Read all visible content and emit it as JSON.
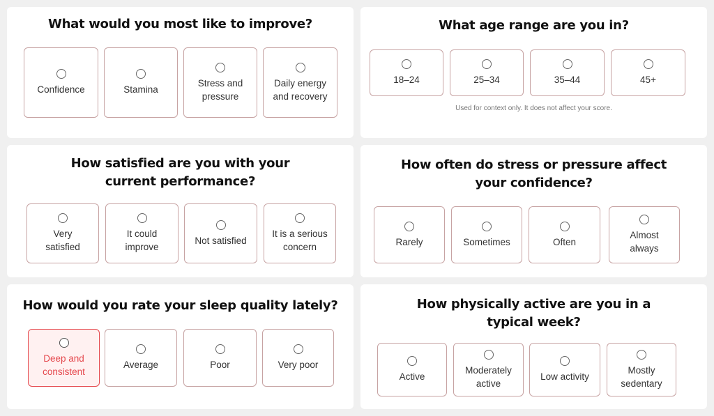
{
  "colors": {
    "page_bg": "#f0f0f0",
    "card_bg": "#ffffff",
    "option_border": "#c7a3a3",
    "selected_accent": "#e5484d",
    "selected_bg": "#fff1f1"
  },
  "q_improve": {
    "title": "What would you most like to improve?",
    "options": [
      "Confidence",
      "Stamina",
      "Stress and pressure",
      "Daily energy and recovery"
    ]
  },
  "q_age": {
    "title": "What age range are you in?",
    "options": [
      "18–24",
      "25–34",
      "35–44",
      "45+"
    ],
    "note": "Used for context only. It does not affect your score."
  },
  "q_satisfied": {
    "title": "How satisfied are you with your current performance?",
    "options": [
      "Very satisfied",
      "It could improve",
      "Not satisfied",
      "It is a serious concern"
    ]
  },
  "q_stress": {
    "title": "How often do stress or pressure affect your confidence?",
    "options": [
      "Rarely",
      "Sometimes",
      "Often",
      "Almost always"
    ]
  },
  "q_sleep": {
    "title": "How would you rate your sleep quality lately?",
    "options": [
      "Deep and consistent",
      "Average",
      "Poor",
      "Very poor"
    ],
    "selected": "Deep and consistent"
  },
  "q_active": {
    "title": "How physically active are you in a typical week?",
    "options": [
      "Active",
      "Moderately active",
      "Low activity",
      "Mostly sedentary"
    ]
  }
}
